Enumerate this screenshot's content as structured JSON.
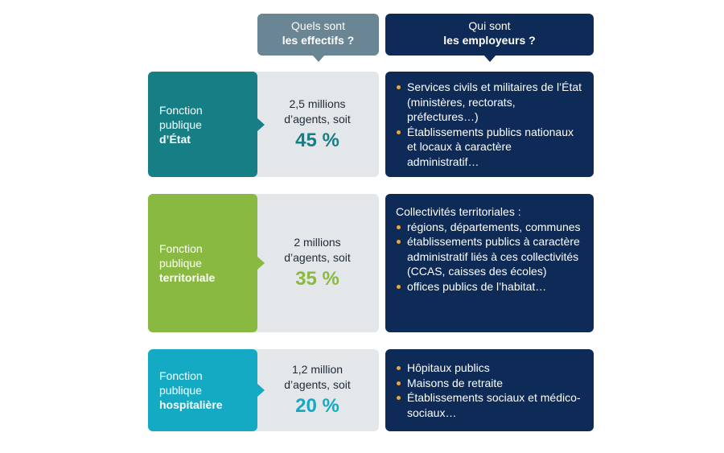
{
  "headers": {
    "effectifs": {
      "line1": "Quels sont",
      "line2": "les effectifs ?"
    },
    "employeurs": {
      "line1": "Qui sont",
      "line2": "les employeurs ?"
    }
  },
  "rows": [
    {
      "label_line1": "Fonction",
      "label_line2": "publique",
      "label_strong": "d’État",
      "agents_line1": "2,5 millions",
      "agents_line2": "d’agents, soit",
      "percent": "45 %",
      "color": "#157f85",
      "intro": "",
      "items": [
        "Services civils et militaires de l’État (ministères, rectorats, préfectures…)",
        "Établissements publics nationaux et locaux à caractère administratif…"
      ]
    },
    {
      "label_line1": "Fonction",
      "label_line2": "publique",
      "label_strong": "territoriale",
      "agents_line1": "2 millions",
      "agents_line2": "d’agents, soit",
      "percent": "35 %",
      "color": "#8ab941",
      "intro": "Collectivités territoriales :",
      "items": [
        "régions, départements, communes",
        "établissements publics à caractère administratif liés à ces collectivités (CCAS, caisses des écoles)",
        "offices publics de l’habitat…"
      ]
    },
    {
      "label_line1": "Fonction",
      "label_line2": "publique",
      "label_strong": "hospitalière",
      "agents_line1": "1,2 million",
      "agents_line2": "d’agents, soit",
      "percent": "20 %",
      "color": "#14aac4",
      "intro": "",
      "items": [
        "Hôpitaux publics",
        "Maisons de retraite",
        "Établissements sociaux et médico-sociaux…"
      ]
    }
  ],
  "colors": {
    "header_grey": "#6a8594",
    "navy": "#0e2a56",
    "bullet": "#f0a830",
    "grey_panel": "#e3e7ea"
  }
}
